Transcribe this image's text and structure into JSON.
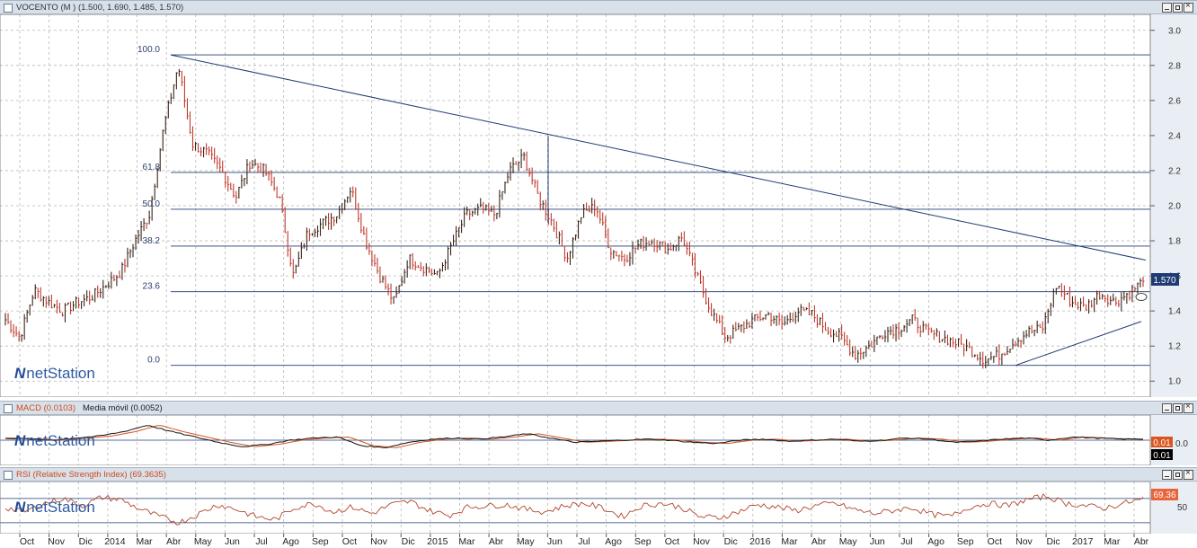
{
  "colors": {
    "bar": "#c0392b",
    "bar_dark": "#3a2418",
    "line": "#1f3b73",
    "grid": "#b8b8b8",
    "axis_bg": "#e9eef5",
    "price_tag": "#1f3b73",
    "macd_tag_up": "#d9541e",
    "macd_tag_dn": "#000000",
    "rsi_tag": "#e8643a",
    "brand": "#2f5aa0"
  },
  "icons": {
    "panel": "square-icon",
    "window": [
      "minimize-icon",
      "maximize-icon",
      "close-icon"
    ]
  },
  "brand": {
    "name": "netStation"
  },
  "price_panel": {
    "title": "VOCENTO (M ) (1.500, 1.690, 1.485, 1.570)",
    "last_price_label": "1.570",
    "fib_labels": [
      "100.0",
      "61.8",
      "50.0",
      "38.2",
      "23.6",
      "0.0"
    ]
  },
  "macd_panel": {
    "title": "MACD (0.0103)",
    "subtitle": "Media móvil (0.0052)",
    "value_tag_1": "0.01",
    "value_tag_2": "0.01"
  },
  "rsi_panel": {
    "title": "RSI (Relative Strength Index) (69.3635)",
    "value_tag": "69.36"
  },
  "chart_data": [
    {
      "type": "bar",
      "name": "price",
      "x_axis": [
        "Oct",
        "Nov",
        "Dic",
        "2014",
        "Mar",
        "Abr",
        "May",
        "Jun",
        "Jul",
        "Ago",
        "Sep",
        "Oct",
        "Nov",
        "Dic",
        "2015",
        "Mar",
        "Abr",
        "May",
        "Jun",
        "Jul",
        "Ago",
        "Sep",
        "Oct",
        "Nov",
        "Dic",
        "2016",
        "Mar",
        "Abr",
        "May",
        "Jun",
        "Jul",
        "Ago",
        "Sep",
        "Oct",
        "Nov",
        "Dic",
        "2017",
        "Mar",
        "Abr"
      ],
      "y_ticks": [
        "1.0",
        "1.2",
        "1.4",
        "1.6",
        "1.8",
        "2.0",
        "2.2",
        "2.4",
        "2.6",
        "2.8",
        "3.0"
      ],
      "ylim": [
        0.95,
        3.05
      ],
      "approx_closes": [
        1.35,
        1.25,
        1.52,
        1.45,
        1.4,
        1.45,
        1.48,
        1.55,
        1.62,
        1.8,
        1.95,
        2.45,
        2.8,
        2.35,
        2.3,
        2.2,
        2.05,
        2.25,
        2.2,
        2.05,
        1.6,
        1.85,
        1.9,
        1.95,
        2.1,
        1.8,
        1.6,
        1.45,
        1.7,
        1.65,
        1.6,
        1.78,
        1.95,
        1.98,
        1.95,
        2.2,
        2.28,
        2.05,
        1.9,
        1.7,
        1.95,
        2.0,
        1.75,
        1.7,
        1.78,
        1.8,
        1.75,
        1.82,
        1.6,
        1.4,
        1.25,
        1.3,
        1.35,
        1.38,
        1.32,
        1.4,
        1.38,
        1.3,
        1.25,
        1.15,
        1.2,
        1.28,
        1.3,
        1.35,
        1.28,
        1.25,
        1.22,
        1.18,
        1.12,
        1.15,
        1.22,
        1.28,
        1.3,
        1.55,
        1.45,
        1.42,
        1.5,
        1.45,
        1.5,
        1.57
      ],
      "fib_levels": {
        "100.0": 2.86,
        "61.8": 2.19,
        "50.0": 1.98,
        "38.2": 1.77,
        "23.6": 1.51,
        "0.0": 1.09
      },
      "last_close": 1.57
    },
    {
      "type": "line",
      "name": "macd",
      "y_ticks": [
        "0.0"
      ],
      "ylim": [
        -0.2,
        0.2
      ],
      "approx_values": [
        0.02,
        0.01,
        0.0,
        0.02,
        0.04,
        0.08,
        0.14,
        0.08,
        0.03,
        -0.02,
        -0.06,
        -0.04,
        0.0,
        0.02,
        0.03,
        -0.05,
        -0.07,
        -0.02,
        0.01,
        0.02,
        0.01,
        0.03,
        0.06,
        0.02,
        -0.02,
        -0.01,
        0.0,
        0.01,
        0.0,
        -0.02,
        -0.03,
        0.0,
        0.01,
        -0.01,
        0.0,
        0.01,
        -0.01,
        0.0,
        0.02,
        0.01,
        -0.02,
        -0.01,
        0.01,
        0.02,
        0.0,
        0.03,
        0.02,
        0.01,
        0.01
      ]
    },
    {
      "type": "line",
      "name": "rsi",
      "y_ticks": [
        "50"
      ],
      "ylim": [
        15,
        95
      ],
      "approx_values": [
        55,
        48,
        62,
        70,
        58,
        72,
        68,
        52,
        40,
        30,
        44,
        60,
        52,
        40,
        35,
        55,
        62,
        48,
        56,
        45,
        60,
        65,
        50,
        42,
        56,
        58,
        60,
        52,
        48,
        58,
        62,
        54,
        40,
        58,
        62,
        56,
        40,
        38,
        48,
        60,
        56,
        50,
        58,
        62,
        52,
        45,
        50,
        55,
        44,
        40,
        56,
        62,
        58,
        68,
        74,
        62,
        58,
        54,
        62,
        69
      ]
    }
  ]
}
